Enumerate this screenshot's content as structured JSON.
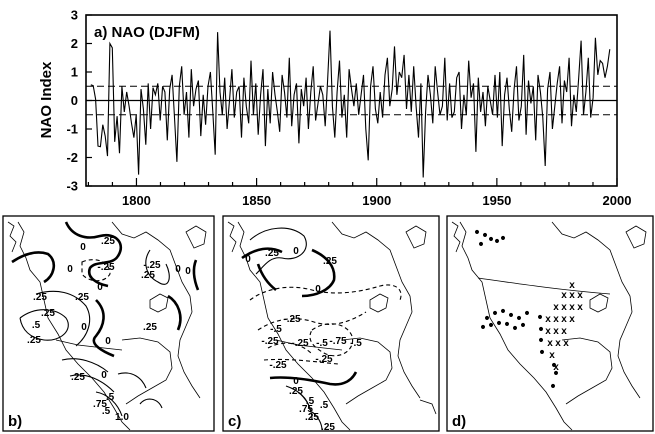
{
  "chart_data": [
    {
      "type": "line",
      "title": "a) NAO (DJFM)",
      "ylabel": "NAO Index",
      "xlabel": "",
      "xlim": [
        1779,
        2000
      ],
      "ylim": [
        -3,
        3
      ],
      "x_ticks": [
        "1800",
        "1850",
        "1900",
        "1950",
        "2000"
      ],
      "y_ticks": [
        "3",
        "2",
        "1",
        "0",
        "-1",
        "-2",
        "-3"
      ],
      "reference_lines": {
        "zero": 0,
        "upper": 0.5,
        "lower": -0.5
      },
      "series": [
        {
          "x_start": 1781,
          "x_end": 1997,
          "values": [
            0.55,
            0.52,
            0.05,
            -1.6,
            -1.62,
            -0.85,
            -1.25,
            -1.95,
            2.0,
            1.85,
            -1.45,
            -0.55,
            -1.85,
            0.5,
            -0.4,
            0.3,
            -0.2,
            -0.8,
            -1.3,
            -0.5,
            -2.6,
            0.4,
            -0.3,
            -1.55,
            0.6,
            -1.0,
            0.45,
            0.2,
            0.6,
            -0.7,
            0.5,
            0.3,
            -1.4,
            0.4,
            0.9,
            -0.6,
            -2.15,
            0.5,
            1.2,
            -0.5,
            0.3,
            -1.3,
            1.1,
            -0.2,
            0.4,
            0.7,
            -1.25,
            0.2,
            -0.85,
            0.5,
            1.0,
            -0.4,
            -1.9,
            2.4,
            0.3,
            -0.5,
            0.8,
            -1.0,
            0.0,
            1.1,
            -0.6,
            0.3,
            0.5,
            -1.3,
            0.8,
            -0.2,
            -0.8,
            1.4,
            -0.5,
            0.6,
            -1.2,
            0.2,
            1.1,
            -1.6,
            0.4,
            -0.8,
            1.0,
            0.2,
            -0.4,
            -1.1,
            0.9,
            0.3,
            -0.6,
            1.5,
            -0.9,
            0.2,
            0.6,
            -1.5,
            0.4,
            -0.2,
            0.8,
            -1.0,
            0.3,
            1.2,
            -0.7,
            -0.1,
            0.5,
            0.2,
            -0.9,
            0.7,
            2.45,
            -0.2,
            -1.3,
            0.3,
            1.4,
            -0.6,
            0.2,
            -1.3,
            1.1,
            0.4,
            -0.2,
            0.6,
            -0.5,
            0.2,
            0.9,
            -1.0,
            -2.1,
            0.5,
            1.2,
            -0.3,
            -0.8,
            0.3,
            -0.6,
            0.9,
            1.5,
            -0.2,
            0.4,
            1.9,
            0.2,
            1.0,
            0.8,
            1.6,
            -0.3,
            0.9,
            -0.4,
            1.2,
            -0.2,
            -1.3,
            0.6,
            -2.7,
            -0.4,
            0.9,
            0.2,
            -0.8,
            1.2,
            0.3,
            -0.5,
            -0.2,
            1.5,
            -0.7,
            0.6,
            -0.6,
            -0.4,
            0.8,
            1.0,
            -1.0,
            0.2,
            -0.5,
            1.4,
            0.1,
            0.6,
            -1.8,
            0.8,
            -0.4,
            0.3,
            -0.9,
            0.5,
            0.0,
            -0.5,
            0.9,
            -0.6,
            1.0,
            -1.6,
            0.2,
            0.8,
            -0.3,
            -1.1,
            0.4,
            1.2,
            -0.7,
            -0.2,
            1.6,
            -1.2,
            0.7,
            -0.1,
            0.5,
            -1.4,
            0.9,
            0.3,
            -0.6,
            -2.3,
            0.4,
            1.0,
            -1.0,
            -0.2,
            0.6,
            1.2,
            -0.8,
            0.7,
            0.3,
            1.5,
            -0.9,
            0.2,
            -0.4,
            0.8,
            2.1,
            -0.5,
            0.3,
            1.5,
            -0.6,
            0.1,
            2.2,
            0.9,
            1.4,
            1.3,
            0.8,
            1.2,
            1.8
          ]
        }
      ]
    },
    {
      "type": "contour",
      "panel_label": "b)",
      "contour_labels": [
        "0",
        ".25",
        "0",
        "-.25",
        ".25",
        ".25",
        "0",
        "0",
        ".25",
        "0",
        ".25",
        ".5",
        ".25",
        "0",
        "-.25",
        "0",
        ".25",
        "0",
        ".25",
        ".5",
        ".75",
        "1.0",
        ".5"
      ]
    },
    {
      "type": "contour",
      "panel_label": "c)",
      "contour_labels": [
        ".25",
        "0",
        "0",
        ".25",
        "0",
        "-.25",
        "-.5",
        "-.25",
        "-.5",
        "-.75",
        "-.5",
        "-.25",
        "-.25",
        "-.25",
        "0",
        ".25",
        ".5",
        ".75",
        ".25",
        ".5",
        ".25"
      ]
    },
    {
      "type": "scatter",
      "panel_label": "d)",
      "markers": {
        "dot": "•",
        "cross": "x"
      },
      "dot_count": 25,
      "cross_count": 20
    }
  ]
}
